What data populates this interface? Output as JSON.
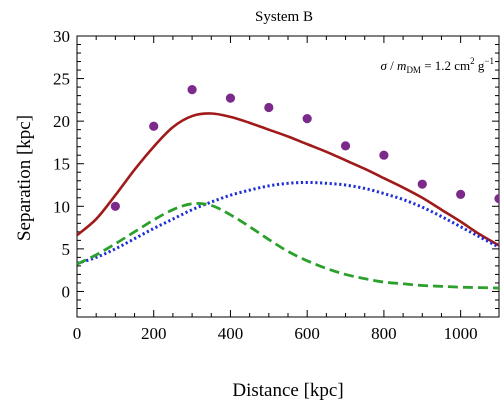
{
  "chart_data": {
    "type": "line",
    "title": "System B",
    "xlabel": "Distance [kpc]",
    "ylabel": "Separation [kpc]",
    "xlim": [
      0,
      1100
    ],
    "ylim": [
      -3,
      30
    ],
    "xticks": [
      0,
      200,
      400,
      600,
      800,
      1000
    ],
    "yticks": [
      0,
      5,
      10,
      15,
      20,
      25,
      30
    ],
    "annotation": {
      "sigma": "σ",
      "slash": " / ",
      "m": "m",
      "m_sub": "DM",
      "eq": " = 1.2  cm",
      "cm_exp": "2",
      "g": " g",
      "g_exp": "−1"
    },
    "series": [
      {
        "style": "solid",
        "color": "#a01a1a",
        "x": [
          0,
          50,
          100,
          150,
          200,
          250,
          300,
          350,
          400,
          450,
          500,
          550,
          600,
          650,
          700,
          750,
          800,
          850,
          900,
          950,
          1000,
          1050,
          1100
        ],
        "y": [
          6.6,
          8.5,
          11.3,
          14.3,
          17.0,
          19.3,
          20.6,
          20.9,
          20.5,
          19.8,
          19.0,
          18.2,
          17.3,
          16.4,
          15.4,
          14.4,
          13.3,
          12.2,
          11.0,
          9.6,
          8.2,
          6.7,
          5.4
        ]
      },
      {
        "style": "dotted",
        "color": "#1f2fd6",
        "x": [
          0,
          50,
          100,
          150,
          200,
          250,
          300,
          350,
          400,
          450,
          500,
          550,
          600,
          650,
          700,
          750,
          800,
          850,
          900,
          950,
          1000,
          1050,
          1100
        ],
        "y": [
          3.3,
          4.0,
          5.0,
          6.2,
          7.4,
          8.5,
          9.6,
          10.5,
          11.3,
          11.9,
          12.4,
          12.7,
          12.8,
          12.7,
          12.5,
          12.1,
          11.5,
          10.8,
          9.9,
          8.8,
          7.6,
          6.4,
          5.2
        ]
      },
      {
        "style": "dashed",
        "color": "#2ca02c",
        "x": [
          0,
          50,
          100,
          150,
          200,
          250,
          300,
          350,
          400,
          450,
          500,
          550,
          600,
          650,
          700,
          750,
          800,
          850,
          900,
          950,
          1000,
          1050,
          1100
        ],
        "y": [
          3.2,
          4.3,
          5.6,
          7.0,
          8.4,
          9.6,
          10.3,
          10.1,
          9.0,
          7.6,
          6.1,
          4.7,
          3.6,
          2.7,
          2.0,
          1.5,
          1.1,
          0.9,
          0.7,
          0.6,
          0.5,
          0.45,
          0.4
        ]
      },
      {
        "style": "points",
        "color": "#7b2a8c",
        "x": [
          100,
          200,
          300,
          400,
          500,
          600,
          700,
          800,
          900,
          1000,
          1100
        ],
        "y": [
          10.0,
          19.4,
          23.7,
          22.7,
          21.6,
          20.3,
          17.1,
          16.0,
          12.6,
          11.4,
          10.9
        ]
      }
    ]
  }
}
